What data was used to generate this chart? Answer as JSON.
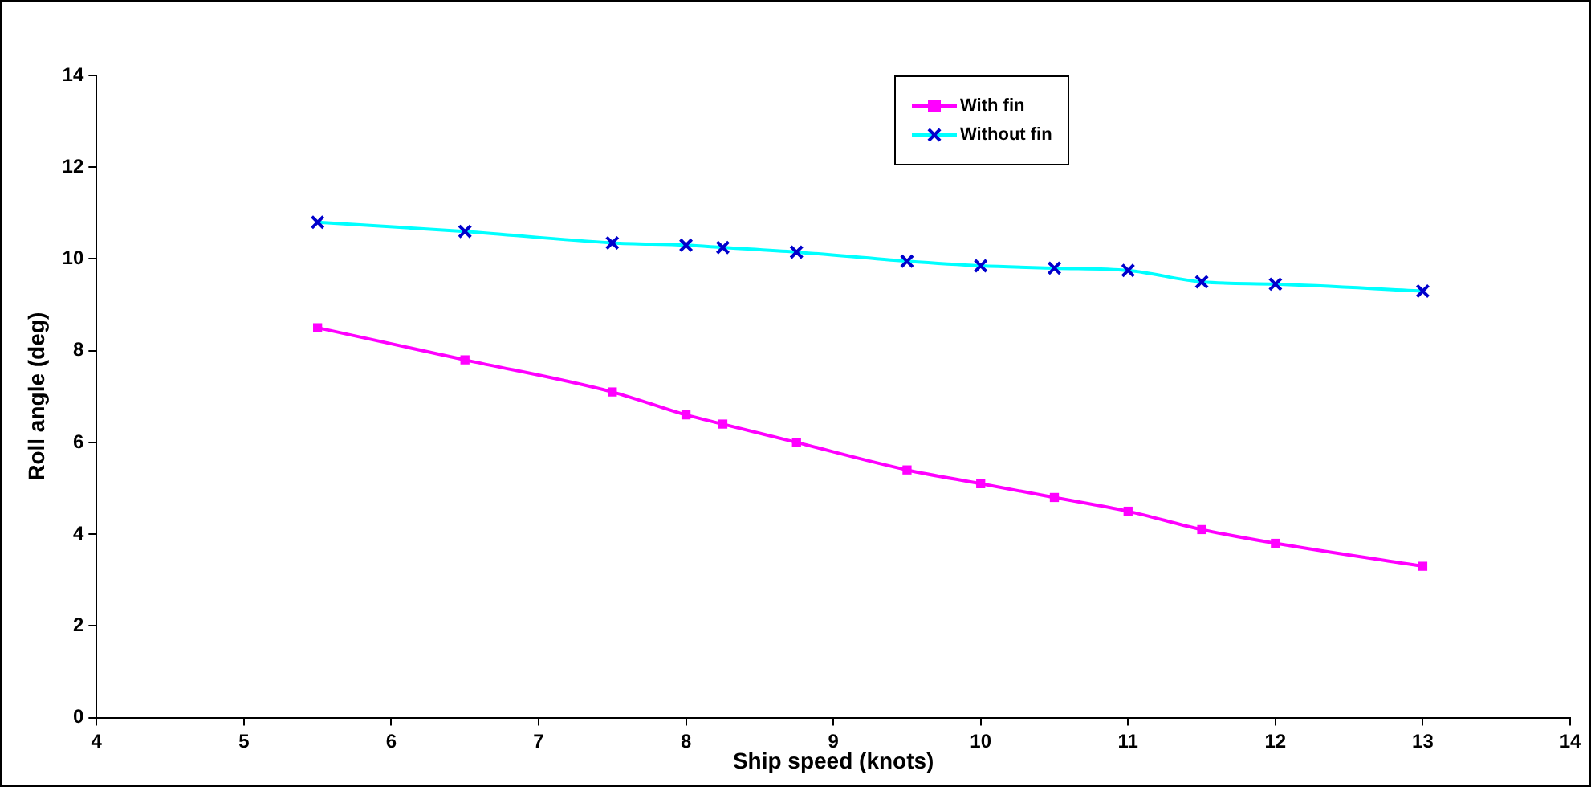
{
  "chart_data": {
    "type": "line",
    "xlabel": "Ship speed (knots)",
    "ylabel": "Roll angle (deg)",
    "xlim": [
      4,
      14
    ],
    "xticks": [
      4,
      5,
      6,
      7,
      8,
      9,
      10,
      11,
      12,
      13,
      14
    ],
    "ylim": [
      0,
      14
    ],
    "yticks": [
      0,
      2,
      4,
      6,
      8,
      10,
      12,
      14
    ],
    "grid": false,
    "legend": "top right",
    "series": [
      {
        "name": "With fin",
        "color": "#ff00ff",
        "marker": "square",
        "x": [
          5.5,
          6.5,
          7.5,
          8,
          8.25,
          8.75,
          9.5,
          10,
          10.5,
          11,
          11.5,
          12,
          13
        ],
        "values": [
          8.5,
          7.8,
          7.1,
          6.6,
          6.4,
          6.0,
          5.4,
          5.1,
          4.8,
          4.5,
          4.1,
          3.8,
          3.3
        ]
      },
      {
        "name": "Without fin",
        "color": "#00ffff",
        "marker": "cross",
        "x": [
          5.5,
          6.5,
          7.5,
          8,
          8.25,
          8.75,
          9.5,
          10,
          10.5,
          11,
          11.5,
          12,
          13
        ],
        "values": [
          10.8,
          10.6,
          10.35,
          10.3,
          10.25,
          10.15,
          9.95,
          9.85,
          9.8,
          9.75,
          9.5,
          9.45,
          9.3
        ]
      }
    ]
  }
}
